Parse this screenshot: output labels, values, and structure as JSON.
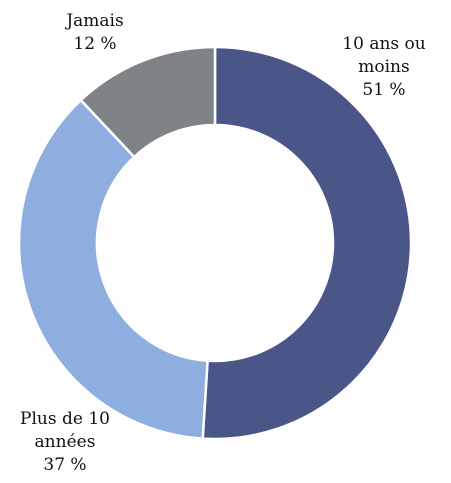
{
  "chart_data": {
    "type": "donut",
    "categories": [
      "10 ans ou moins",
      "Plus de 10 années",
      "Jamais"
    ],
    "values": [
      51,
      37,
      12
    ],
    "value_labels": [
      "51 %",
      "37 %",
      "12 %"
    ],
    "colors": [
      "#4a5688",
      "#8eaee0",
      "#7f8387"
    ]
  }
}
